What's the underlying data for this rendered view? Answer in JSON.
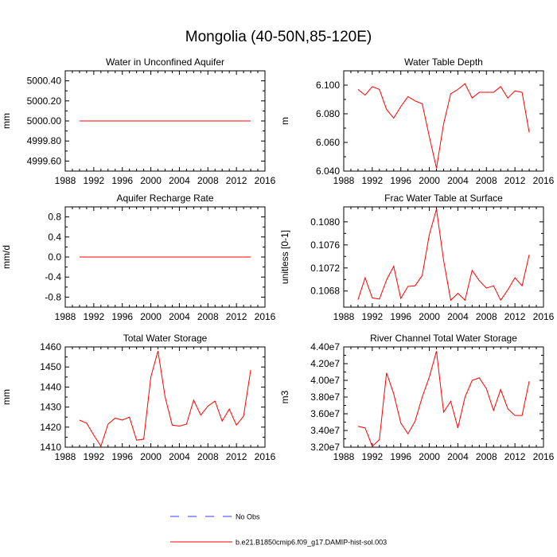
{
  "title": "Mongolia (40-50N,85-120E)",
  "colors": {
    "model": "#ff0000",
    "obs": "#3b3bff",
    "axis": "#000000"
  },
  "legend": [
    {
      "label": "No Obs",
      "style": "dashed",
      "color": "#3b3bff"
    },
    {
      "label": "b.e21.B1850cmip6.f09_g17.DAMIP-hist-sol.003",
      "style": "solid",
      "color": "#ff0000"
    }
  ],
  "chart_data": [
    {
      "type": "line",
      "title": "Water in Unconfined Aquifer",
      "ylabel": "mm",
      "xlim": [
        1988,
        2016
      ],
      "ylim": [
        4999.5,
        5000.5
      ],
      "xticks": [
        "1988",
        "1992",
        "1996",
        "2000",
        "2004",
        "2008",
        "2012",
        "2016"
      ],
      "yticks": [
        4999.6,
        4999.8,
        5000.0,
        5000.2,
        5000.4
      ],
      "ytick_labels": [
        "4999.60",
        "4999.80",
        "5000.00",
        "5000.20",
        "5000.40"
      ],
      "series": [
        {
          "x": [
            1990,
            1991,
            1992,
            1993,
            1994,
            1995,
            1996,
            1997,
            1998,
            1999,
            2000,
            2001,
            2002,
            2003,
            2004,
            2005,
            2006,
            2007,
            2008,
            2009,
            2010,
            2011,
            2012,
            2013,
            2014
          ],
          "y": [
            5000,
            5000,
            5000,
            5000,
            5000,
            5000,
            5000,
            5000,
            5000,
            5000,
            5000,
            5000,
            5000,
            5000,
            5000,
            5000,
            5000,
            5000,
            5000,
            5000,
            5000,
            5000,
            5000,
            5000,
            5000
          ]
        }
      ]
    },
    {
      "type": "line",
      "title": "Water Table Depth",
      "ylabel": "m",
      "xlim": [
        1988,
        2016
      ],
      "ylim": [
        6.04,
        6.11
      ],
      "xticks": [
        "1988",
        "1992",
        "1996",
        "2000",
        "2004",
        "2008",
        "2012",
        "2016"
      ],
      "yticks": [
        6.04,
        6.06,
        6.08,
        6.1
      ],
      "ytick_labels": [
        "6.040",
        "6.060",
        "6.080",
        "6.100"
      ],
      "series": [
        {
          "x": [
            1990,
            1991,
            1992,
            1993,
            1994,
            1995,
            1996,
            1997,
            1998,
            1999,
            2000,
            2001,
            2002,
            2003,
            2004,
            2005,
            2006,
            2007,
            2008,
            2009,
            2010,
            2011,
            2012,
            2013,
            2014
          ],
          "y": [
            6.097,
            6.093,
            6.099,
            6.097,
            6.083,
            6.077,
            6.085,
            6.092,
            6.089,
            6.087,
            6.064,
            6.042,
            6.073,
            6.094,
            6.097,
            6.101,
            6.091,
            6.095,
            6.095,
            6.095,
            6.099,
            6.091,
            6.096,
            6.095,
            6.067
          ]
        }
      ]
    },
    {
      "type": "line",
      "title": "Aquifer Recharge Rate",
      "ylabel": "mm/d",
      "xlim": [
        1988,
        2016
      ],
      "ylim": [
        -1.0,
        1.0
      ],
      "xticks": [
        "1988",
        "1992",
        "1996",
        "2000",
        "2004",
        "2008",
        "2012",
        "2016"
      ],
      "yticks": [
        -0.8,
        -0.4,
        0.0,
        0.4,
        0.8
      ],
      "ytick_labels": [
        "-0.8",
        "-0.4",
        "0.0",
        "0.4",
        "0.8"
      ],
      "series": [
        {
          "x": [
            1990,
            1991,
            1992,
            1993,
            1994,
            1995,
            1996,
            1997,
            1998,
            1999,
            2000,
            2001,
            2002,
            2003,
            2004,
            2005,
            2006,
            2007,
            2008,
            2009,
            2010,
            2011,
            2012,
            2013,
            2014
          ],
          "y": [
            0,
            0,
            0,
            0,
            0,
            0,
            0,
            0,
            0,
            0,
            0,
            0,
            0,
            0,
            0,
            0,
            0,
            0,
            0,
            0,
            0,
            0,
            0,
            0,
            0
          ]
        }
      ]
    },
    {
      "type": "line",
      "title": "Frac Water Table at Surface",
      "ylabel": "unitless [0-1]",
      "xlim": [
        1988,
        2016
      ],
      "ylim": [
        0.10652,
        0.10826
      ],
      "xticks": [
        "1988",
        "1992",
        "1996",
        "2000",
        "2004",
        "2008",
        "2012",
        "2016"
      ],
      "yticks": [
        0.1068,
        0.1072,
        0.1076,
        0.108
      ],
      "ytick_labels": [
        "0.1068",
        "0.1072",
        "0.1076",
        "0.1080"
      ],
      "series": [
        {
          "x": [
            1990,
            1991,
            1992,
            1993,
            1994,
            1995,
            1996,
            1997,
            1998,
            1999,
            2000,
            2001,
            2002,
            2003,
            2004,
            2005,
            2006,
            2007,
            2008,
            2009,
            2010,
            2011,
            2012,
            2013,
            2014
          ],
          "y": [
            0.10665,
            0.10703,
            0.10668,
            0.10666,
            0.10699,
            0.10723,
            0.10667,
            0.10688,
            0.10689,
            0.10707,
            0.10778,
            0.10822,
            0.10733,
            0.10664,
            0.10676,
            0.10664,
            0.10716,
            0.10698,
            0.10685,
            0.10689,
            0.10664,
            0.10682,
            0.10703,
            0.10689,
            0.10743
          ]
        }
      ]
    },
    {
      "type": "line",
      "title": "Total Water Storage",
      "ylabel": "mm",
      "xlim": [
        1988,
        2016
      ],
      "ylim": [
        1410,
        1460
      ],
      "xticks": [
        "1988",
        "1992",
        "1996",
        "2000",
        "2004",
        "2008",
        "2012",
        "2016"
      ],
      "yticks": [
        1410,
        1420,
        1430,
        1440,
        1450,
        1460
      ],
      "ytick_labels": [
        "1410",
        "1420",
        "1430",
        "1440",
        "1450",
        "1460"
      ],
      "series": [
        {
          "x": [
            1990,
            1991,
            1992,
            1993,
            1994,
            1995,
            1996,
            1997,
            1998,
            1999,
            2000,
            2001,
            2002,
            2003,
            2004,
            2005,
            2006,
            2007,
            2008,
            2009,
            2010,
            2011,
            2012,
            2013,
            2014
          ],
          "y": [
            1423.5,
            1422,
            1416,
            1410.5,
            1421.5,
            1424.5,
            1423.5,
            1425,
            1413.5,
            1414,
            1445,
            1458,
            1435,
            1421,
            1420.5,
            1421.5,
            1433.5,
            1426,
            1430.5,
            1433,
            1423,
            1429,
            1421,
            1425.5,
            1448.5
          ]
        }
      ]
    },
    {
      "type": "line",
      "title": "River Channel Total Water Storage",
      "ylabel": "m3",
      "xlim": [
        1988,
        2016
      ],
      "ylim": [
        32000000,
        44000000
      ],
      "xticks": [
        "1988",
        "1992",
        "1996",
        "2000",
        "2004",
        "2008",
        "2012",
        "2016"
      ],
      "yticks": [
        32000000,
        34000000,
        36000000,
        38000000,
        40000000,
        42000000,
        44000000
      ],
      "ytick_labels": [
        "3.20e7",
        "3.40e7",
        "3.60e7",
        "3.80e7",
        "4.00e7",
        "4.20e7",
        "4.40e7"
      ],
      "series": [
        {
          "x": [
            1990,
            1991,
            1992,
            1993,
            1994,
            1995,
            1996,
            1997,
            1998,
            1999,
            2000,
            2001,
            2002,
            2003,
            2004,
            2005,
            2006,
            2007,
            2008,
            2009,
            2010,
            2011,
            2012,
            2013,
            2014
          ],
          "y": [
            34500000,
            34300000,
            32100000,
            32900000,
            40900000,
            38400000,
            34900000,
            33600000,
            35100000,
            38000000,
            40400000,
            43500000,
            36200000,
            37500000,
            34300000,
            38000000,
            40000000,
            40300000,
            39000000,
            36400000,
            38900000,
            36600000,
            35800000,
            35800000,
            39900000
          ]
        }
      ]
    }
  ]
}
